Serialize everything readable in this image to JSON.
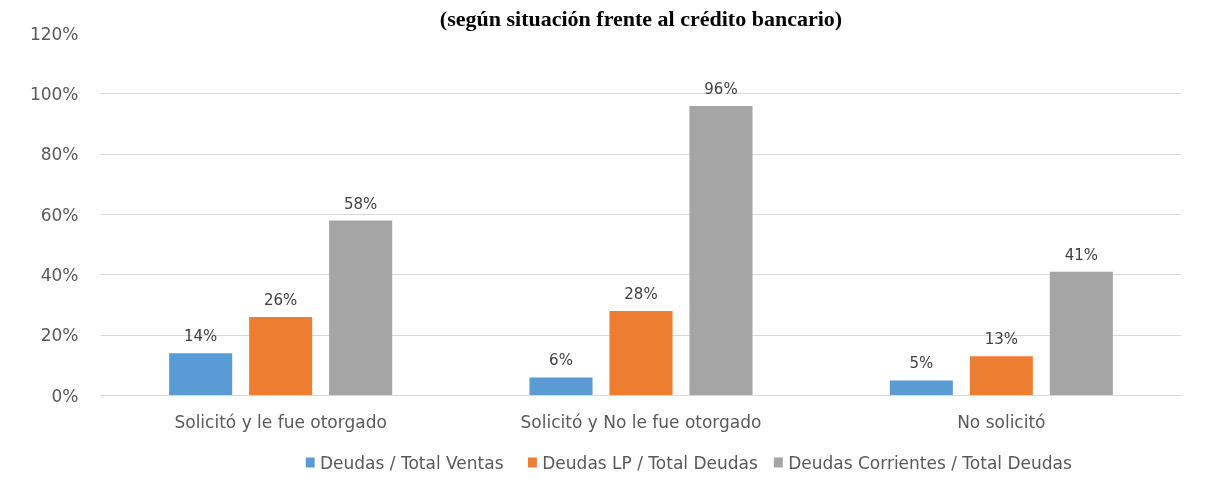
{
  "chart_data": {
    "type": "bar",
    "title": "(según situación frente al crédito bancario)",
    "categories": [
      "Solicitó y le fue otorgado",
      "Solicitó y No le fue otorgado",
      "No solicitó"
    ],
    "series": [
      {
        "name": "Deudas / Total Ventas",
        "color": "#5b9bd5",
        "values": [
          14,
          6,
          5
        ],
        "value_labels": [
          "14%",
          "6%",
          "5%"
        ]
      },
      {
        "name": "Deudas LP / Total Deudas",
        "color": "#ed7d31",
        "values": [
          26,
          28,
          13
        ],
        "value_labels": [
          "26%",
          "28%",
          "13%"
        ]
      },
      {
        "name": "Deudas Corrientes / Total Deudas",
        "color": "#a5a5a5",
        "values": [
          58,
          96,
          41
        ],
        "value_labels": [
          "58%",
          "96%",
          "41%"
        ]
      }
    ],
    "ylim": [
      0,
      120
    ],
    "yticks": [
      {
        "value": 0,
        "label": "0%"
      },
      {
        "value": 20,
        "label": "20%"
      },
      {
        "value": 40,
        "label": "40%"
      },
      {
        "value": 60,
        "label": "60%"
      },
      {
        "value": 80,
        "label": "80%"
      },
      {
        "value": 100,
        "label": "100%"
      },
      {
        "value": 120,
        "label": "120%"
      }
    ],
    "grid": "y",
    "legend": "bottom"
  }
}
